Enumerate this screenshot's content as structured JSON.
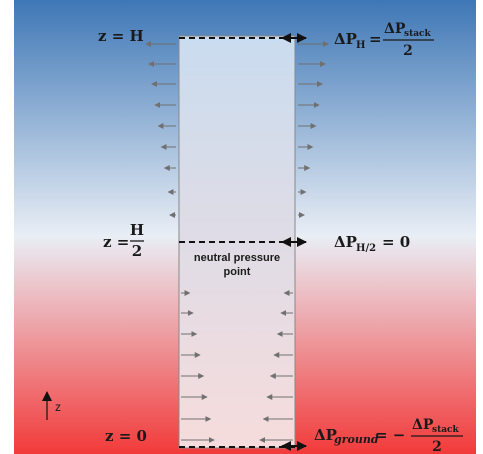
{
  "diagram": {
    "colors": {
      "top": "#3e77b6",
      "middle": "#e9eef5",
      "bottom": "#f23a3a",
      "building_top": "#c9dcef",
      "building_bottom": "#f6dcdc",
      "arrow": "#707070",
      "line": "#111111"
    },
    "labels": {
      "z_top": "z = H",
      "z_mid_left": "z =",
      "z_mid_num": "H",
      "z_mid_den": "2",
      "z_bottom": "z = 0",
      "dp_top_lhs": "ΔP",
      "dp_top_sub": "H",
      "dp_top_eq": "=",
      "dp_top_num": "ΔP",
      "dp_top_num_sub": "stack",
      "dp_top_den": "2",
      "dp_mid_lhs": "ΔP",
      "dp_mid_sub": "H/2",
      "dp_mid_rhs": "= 0",
      "dp_bot_lhs": "ΔP",
      "dp_bot_sub": "ground",
      "dp_bot_eq": "= −",
      "dp_bot_num": "ΔP",
      "dp_bot_num_sub": "stack",
      "dp_bot_den": "2",
      "neutral_line1": "neutral pressure",
      "neutral_line2": "point",
      "axis_label": "z"
    }
  }
}
